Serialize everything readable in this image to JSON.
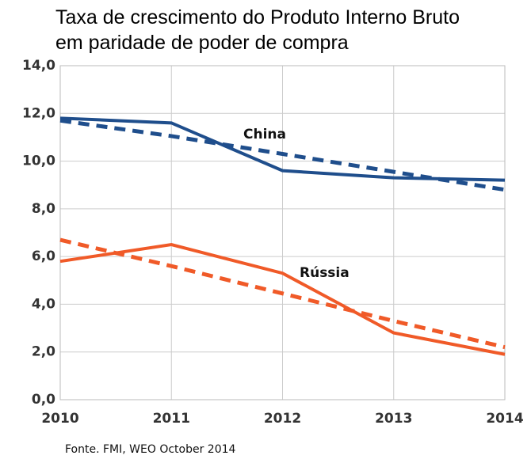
{
  "chart_data": {
    "type": "line",
    "title": "Taxa de crescimento do Produto Interno Bruto",
    "subtitle": "em paridade de poder de compra",
    "source": "Fonte. FMI, WEO October 2014",
    "x": [
      2010,
      2011,
      2012,
      2013,
      2014
    ],
    "xlim": [
      2010,
      2014
    ],
    "xticks": [
      2010,
      2011,
      2012,
      2013,
      2014
    ],
    "ylim": [
      0,
      14
    ],
    "yticks": [
      {
        "value": 0,
        "label": "0,0"
      },
      {
        "value": 2,
        "label": "2,0"
      },
      {
        "value": 4,
        "label": "4,0"
      },
      {
        "value": 6,
        "label": "6,0"
      },
      {
        "value": 8,
        "label": "8,0"
      },
      {
        "value": 10,
        "label": "10,0"
      },
      {
        "value": 12,
        "label": "12,0"
      },
      {
        "value": 14,
        "label": "14,0"
      }
    ],
    "grid": true,
    "series": [
      {
        "name": "China",
        "color": "#1f4e8c",
        "values": [
          11.8,
          11.6,
          9.6,
          9.3,
          9.2
        ]
      },
      {
        "color": "#1f4e8c",
        "dashed": true,
        "values": [
          11.7,
          11.05,
          10.3,
          9.55,
          8.8
        ]
      },
      {
        "name": "Rússia",
        "color": "#f05a28",
        "values": [
          5.8,
          6.5,
          5.3,
          2.8,
          1.9
        ]
      },
      {
        "color": "#f05a28",
        "dashed": true,
        "values": [
          6.7,
          5.6,
          4.45,
          3.3,
          2.2
        ]
      }
    ]
  }
}
